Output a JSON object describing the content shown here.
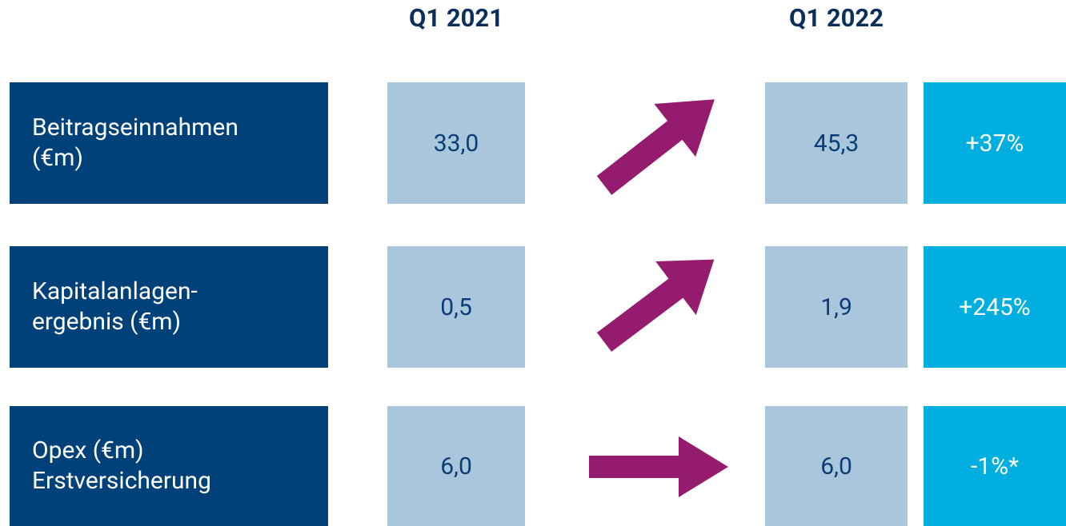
{
  "headers": [
    "Q1 2021",
    "Q1 2022"
  ],
  "rows": [
    {
      "label": [
        "Beitragseinnahmen",
        "(€m)"
      ],
      "q1_2021": "33,0",
      "q1_2022": "45,3",
      "change": "+37%"
    },
    {
      "label": [
        "Kapitalanlagen-",
        "ergebnis (€m)"
      ],
      "q1_2021": "0,5",
      "q1_2022": "1,9",
      "change": "+245%"
    },
    {
      "label": [
        "Opex (€m)",
        "Erstversicherung"
      ],
      "q1_2021": "6,0",
      "q1_2022": "6,0",
      "change": "-1%*"
    }
  ]
}
